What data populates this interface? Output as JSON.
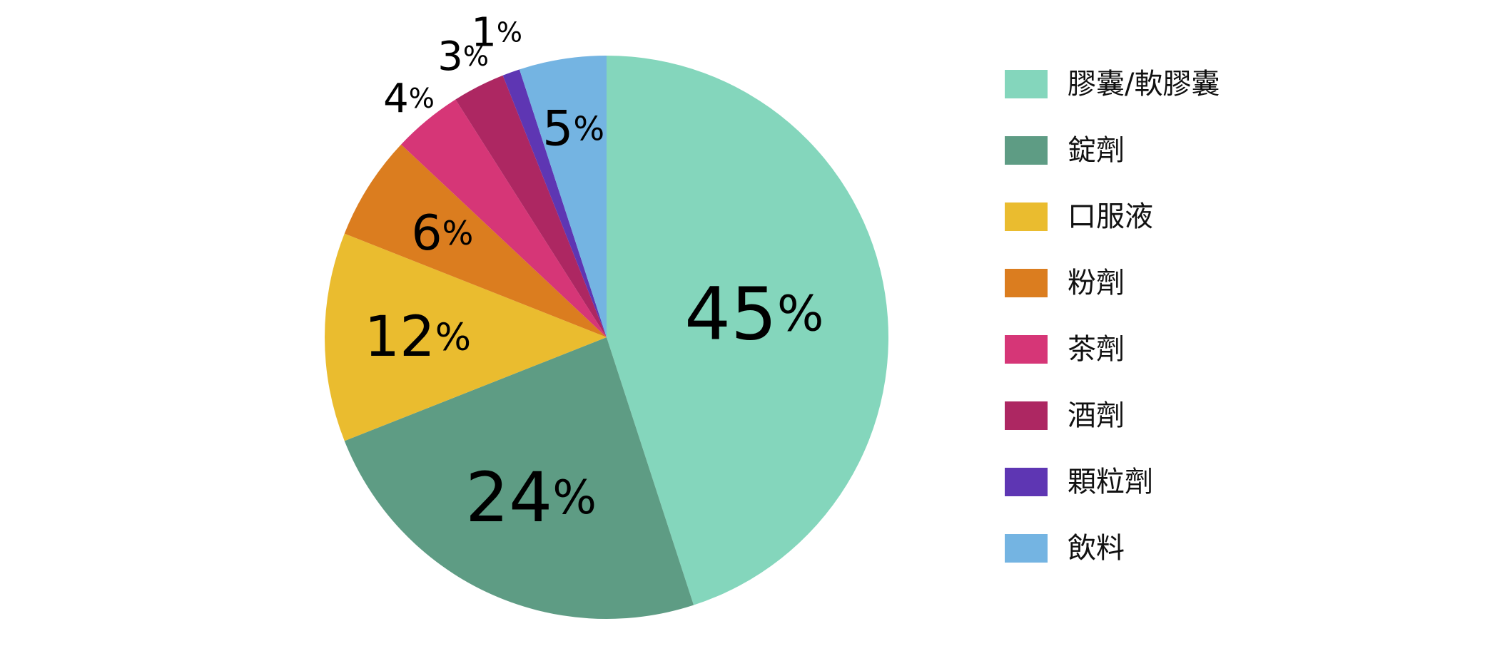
{
  "chart_data": {
    "type": "pie",
    "title": "",
    "slices": [
      {
        "name": "膠囊/軟膠囊",
        "value": 45,
        "label": "45%",
        "color": "#84d6bc"
      },
      {
        "name": "錠劑",
        "value": 24,
        "label": "24%",
        "color": "#5e9c84"
      },
      {
        "name": "口服液",
        "value": 12,
        "label": "12%",
        "color": "#eabc2f"
      },
      {
        "name": "粉劑",
        "value": 6,
        "label": "6%",
        "color": "#db7d1f"
      },
      {
        "name": "茶劑",
        "value": 4,
        "label": "4%",
        "color": "#d63677"
      },
      {
        "name": "酒劑",
        "value": 3,
        "label": "3%",
        "color": "#ad2762"
      },
      {
        "name": "顆粒劑",
        "value": 1,
        "label": "1%",
        "color": "#5e36b3"
      },
      {
        "name": "飲料",
        "value": 5,
        "label": "5%",
        "color": "#74b4e2"
      }
    ],
    "start": "12 o'clock",
    "direction": "clockwise",
    "legend_position": "right"
  }
}
